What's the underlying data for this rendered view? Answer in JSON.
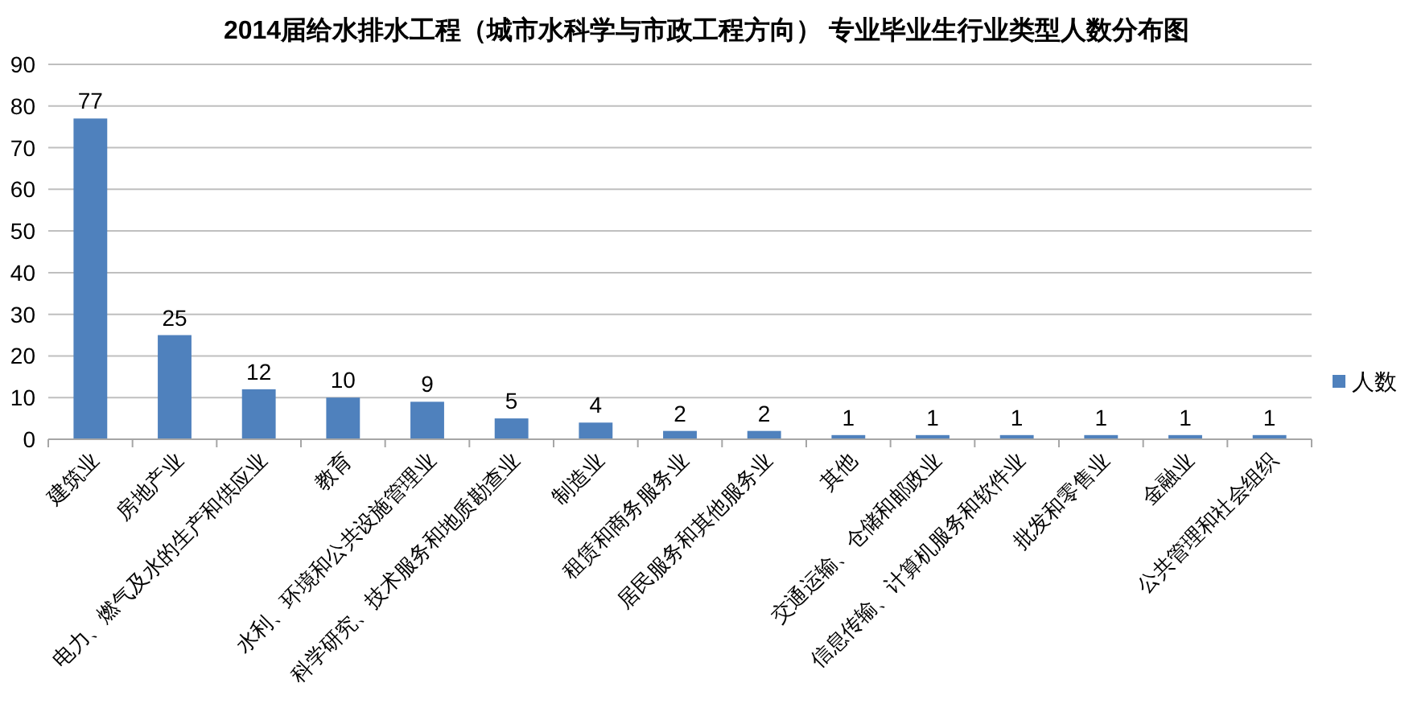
{
  "chart_data": {
    "type": "bar",
    "title": "2014届给水排水工程（城市水科学与市政工程方向） 专业毕业生行业类型人数分布图",
    "categories": [
      "建筑业",
      "房地产业",
      "电力、燃气及水的生产和供应业",
      "教育",
      "水利、环境和公共设施管理业",
      "科学研究、技术服务和地质勘查业",
      "制造业",
      "租赁和商务服务业",
      "居民服务和其他服务业",
      "其他",
      "交通运输、仓储和邮政业",
      "信息传输、计算机服务和软件业",
      "批发和零售业",
      "金融业",
      "公共管理和社会组织"
    ],
    "series": [
      {
        "name": "人数",
        "color": "#4f81bd",
        "values": [
          77,
          25,
          12,
          10,
          9,
          5,
          4,
          2,
          2,
          1,
          1,
          1,
          1,
          1,
          1
        ]
      }
    ],
    "ylim": [
      0,
      90
    ],
    "yticks": [
      0,
      10,
      20,
      30,
      40,
      50,
      60,
      70,
      80,
      90
    ],
    "grid": "y",
    "legend": "right",
    "data_labels": true
  }
}
